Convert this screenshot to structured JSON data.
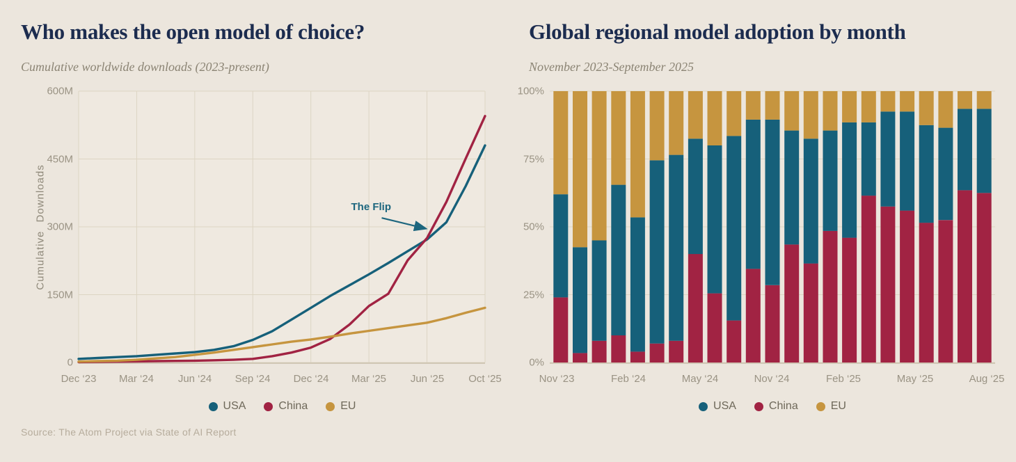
{
  "page": {
    "source_note": "Source: The Atom Project via State of AI Report"
  },
  "colors": {
    "usa": "#16607a",
    "china": "#a12343",
    "eu": "#c6953f",
    "background": "#ece6dd",
    "grid": "#ddd5c3",
    "title_navy": "#1c2c4f",
    "annotation": "#1d667e"
  },
  "legend": {
    "items": [
      {
        "label": "USA",
        "color_key": "usa"
      },
      {
        "label": "China",
        "color_key": "china"
      },
      {
        "label": "EU",
        "color_key": "eu"
      }
    ]
  },
  "left_chart": {
    "title": "Who makes the open model of choice?",
    "subtitle": "Cumulative worldwide downloads (2023-present)",
    "ylabel": "Cumulative Downloads"
  },
  "right_chart": {
    "title": "Global regional model adoption by month",
    "subtitle": "November 2023-September 2025"
  },
  "chart_data": [
    {
      "id": "cumulative-downloads",
      "type": "line",
      "title": "Who makes the open model of choice?",
      "subtitle": "Cumulative worldwide downloads (2023-present)",
      "xlabel": "",
      "ylabel": "Cumulative Downloads",
      "unit": "millions of downloads",
      "ylim": [
        0,
        600
      ],
      "grid": true,
      "legend_position": "bottom",
      "y_tick_labels": [
        "600M",
        "450M",
        "300M",
        "150M",
        "0"
      ],
      "y_tick_values": [
        600,
        450,
        300,
        150,
        0
      ],
      "x_tick_labels": [
        "Dec ‘23",
        "Mar ‘24",
        "Jun ‘24",
        "Sep ‘24",
        "Dec ‘24",
        "Mar ‘25",
        "Jun ‘25",
        "Oct ‘25"
      ],
      "x_range_months": 22,
      "series": [
        {
          "name": "USA",
          "color_key": "usa",
          "values": [
            8,
            10,
            12,
            14,
            17,
            20,
            23,
            28,
            36,
            50,
            69,
            95,
            121,
            147,
            171,
            195,
            220,
            246,
            272,
            310,
            390,
            480
          ]
        },
        {
          "name": "China",
          "color_key": "china",
          "values": [
            1,
            1.5,
            2,
            2.5,
            3,
            3.5,
            4,
            5,
            6,
            8,
            14,
            22,
            33,
            52,
            84,
            125,
            152,
            226,
            275,
            355,
            451,
            545
          ]
        },
        {
          "name": "EU",
          "color_key": "eu",
          "values": [
            2,
            3,
            4,
            6,
            9,
            12,
            17,
            22,
            28,
            34,
            40,
            46,
            51,
            57,
            64,
            70,
            76,
            82,
            88,
            98,
            110,
            121
          ]
        }
      ],
      "annotation": {
        "text": "The Flip",
        "target_month_index": 18.25,
        "target_value": 292
      }
    },
    {
      "id": "regional-adoption",
      "type": "stacked_bar_percent",
      "title": "Global regional model adoption by month",
      "subtitle": "November 2023-September 2025",
      "ylim": [
        0,
        100
      ],
      "grid": true,
      "legend_position": "bottom",
      "y_tick_labels": [
        "100%",
        "75%",
        "50%",
        "25%",
        "0%"
      ],
      "y_tick_values": [
        100,
        75,
        50,
        25,
        0
      ],
      "x_tick_labels": [
        "Nov ‘23",
        "Feb ‘24",
        "May ‘24",
        "Nov ‘24",
        "Feb ‘25",
        "May ‘25",
        "Aug ‘25"
      ],
      "categories": [
        "Nov '23",
        "Dec '23",
        "Jan '24",
        "Feb '24",
        "Mar '24",
        "Apr '24",
        "May '24",
        "Jun '24",
        "Jul '24",
        "Aug '24",
        "Sep '24",
        "Oct '24",
        "Nov '24",
        "Dec '24",
        "Jan '25",
        "Feb '25",
        "Mar '25",
        "Apr '25",
        "May '25",
        "Jun '25",
        "Jul '25",
        "Aug '25",
        "Sep '25"
      ],
      "series": [
        {
          "name": "China",
          "color_key": "china",
          "stack_order": 0,
          "values": [
            24,
            3.5,
            8,
            10,
            4,
            7,
            8,
            40,
            25.5,
            15.5,
            34.5,
            28.5,
            43.5,
            36.5,
            48.5,
            46,
            61.5,
            57.5,
            56,
            51.5,
            52.5,
            63.5,
            62.5
          ]
        },
        {
          "name": "USA",
          "color_key": "usa",
          "stack_order": 1,
          "values": [
            38,
            39,
            37,
            55.5,
            49.5,
            67.5,
            68.5,
            42.5,
            54.5,
            68,
            55,
            61,
            42,
            46,
            37,
            42.5,
            27,
            35,
            36.5,
            36,
            34,
            30,
            31
          ]
        },
        {
          "name": "EU",
          "color_key": "eu",
          "stack_order": 2,
          "values": [
            38,
            57.5,
            55,
            34.5,
            46.5,
            25.5,
            23.5,
            17.5,
            20,
            16.5,
            10.5,
            10.5,
            14.5,
            17.5,
            14.5,
            11.5,
            11.5,
            7.5,
            7.5,
            12.5,
            13.5,
            6.5,
            6.5
          ]
        }
      ]
    }
  ]
}
